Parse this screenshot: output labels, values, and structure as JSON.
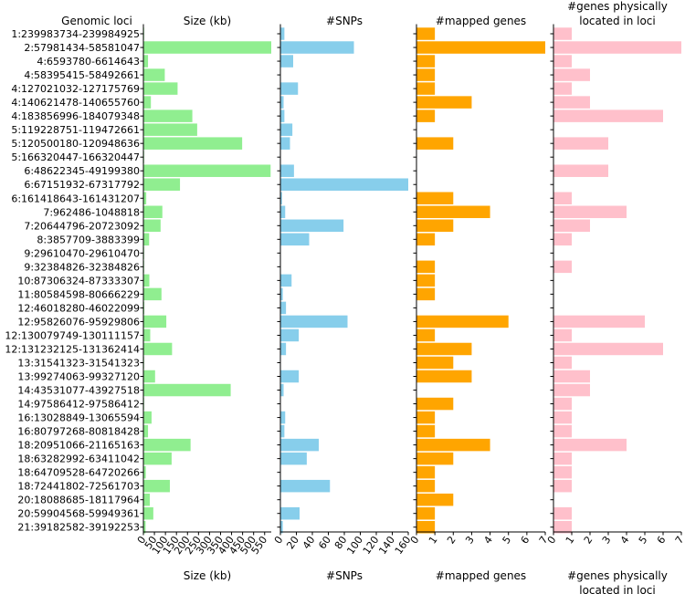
{
  "chart_data": {
    "type": "bar",
    "orientation": "horizontal",
    "row_header": "Genomic loci",
    "colors": {
      "size": "#90ee90",
      "snps": "#87ceeb",
      "mapped": "#ffa500",
      "physical": "#ffc0cb"
    },
    "categories": [
      "1:239983734-239984925",
      "2:57981434-58581047",
      "4:6593780-6614643",
      "4:58395415-58492661",
      "4:127021032-127175769",
      "4:140621478-140655760",
      "4:183856996-184079348",
      "5:119228751-119472661",
      "5:120500180-120948636",
      "5:166320447-166320447",
      "6:48622345-49199380",
      "6:67151932-67317792",
      "6:161418643-161431207",
      "7:962486-1048818",
      "7:20644796-20723092",
      "8:3857709-3883399",
      "9:29610470-29610470",
      "9:32384826-32384826",
      "10:87306324-87333307",
      "11:80584598-80666229",
      "12:46018280-46022099",
      "12:95826076-95929806",
      "12:130079749-130111157",
      "12:131232125-131362414",
      "13:31541323-31541323",
      "13:99274063-99327120",
      "14:43531077-43927518",
      "14:97586412-97586412",
      "16:13028849-13065594",
      "16:80797268-80818428",
      "18:20951066-21165163",
      "18:63282992-63411042",
      "18:64709528-64720266",
      "18:72441802-72561703",
      "20:18088685-18117964",
      "20:59904568-59949361",
      "21:39182582-39192253"
    ],
    "panels": [
      {
        "key": "size",
        "xlabel": "Size (kb)",
        "title_lines": [
          "Size (kb)"
        ],
        "xlabel_lines": [
          "Size (kb)"
        ],
        "xlim": [
          0,
          580
        ],
        "ticks": [
          0,
          50,
          100,
          150,
          200,
          250,
          300,
          350,
          400,
          450,
          500,
          550
        ],
        "values": [
          1.2,
          600,
          21,
          97,
          155,
          34,
          222,
          244,
          448,
          0.5,
          577,
          166,
          13,
          86,
          78,
          26,
          0.5,
          0.5,
          27,
          82,
          4,
          104,
          31,
          130,
          0.5,
          53,
          396,
          0.5,
          37,
          21,
          214,
          128,
          11,
          120,
          29,
          45,
          10
        ]
      },
      {
        "key": "snps",
        "xlabel": "#SNPs",
        "title_lines": [
          "#SNPs"
        ],
        "xlabel_lines": [
          "#SNPs"
        ],
        "xlim": [
          0,
          160
        ],
        "ticks": [
          0,
          20,
          40,
          60,
          80,
          100,
          120,
          140,
          160
        ],
        "values": [
          5,
          92,
          16,
          0,
          22,
          4,
          5,
          15,
          12,
          0,
          17,
          160,
          2,
          6,
          79,
          36,
          0,
          0,
          14,
          3,
          7,
          84,
          23,
          7,
          0,
          23,
          4,
          0,
          6,
          5,
          48,
          33,
          0,
          62,
          0,
          24,
          3
        ]
      },
      {
        "key": "mapped",
        "xlabel": "#mapped genes",
        "title_lines": [
          "#mapped genes"
        ],
        "xlabel_lines": [
          "#mapped genes"
        ],
        "xlim": [
          0,
          7
        ],
        "ticks": [
          0,
          1,
          2,
          3,
          4,
          5,
          6,
          7
        ],
        "values": [
          1,
          7,
          1,
          1,
          1,
          3,
          1,
          0,
          2,
          0,
          0,
          0,
          2,
          4,
          2,
          1,
          0,
          1,
          1,
          1,
          0,
          5,
          1,
          3,
          2,
          3,
          0,
          2,
          1,
          1,
          4,
          2,
          1,
          1,
          2,
          1,
          1
        ]
      },
      {
        "key": "physical",
        "xlabel": "#genes physically located in loci",
        "title_lines": [
          "#genes physically",
          "located in loci"
        ],
        "xlabel_lines": [
          "#genes physically",
          "located in loci"
        ],
        "xlim": [
          0,
          7
        ],
        "ticks": [
          0,
          1,
          2,
          3,
          4,
          5,
          6,
          7
        ],
        "values": [
          1,
          7,
          1,
          2,
          1,
          2,
          6,
          0,
          3,
          0,
          3,
          0,
          1,
          4,
          2,
          1,
          0,
          1,
          0,
          0,
          0,
          5,
          1,
          6,
          1,
          2,
          2,
          1,
          1,
          1,
          4,
          1,
          1,
          1,
          0,
          1,
          1
        ]
      }
    ]
  }
}
